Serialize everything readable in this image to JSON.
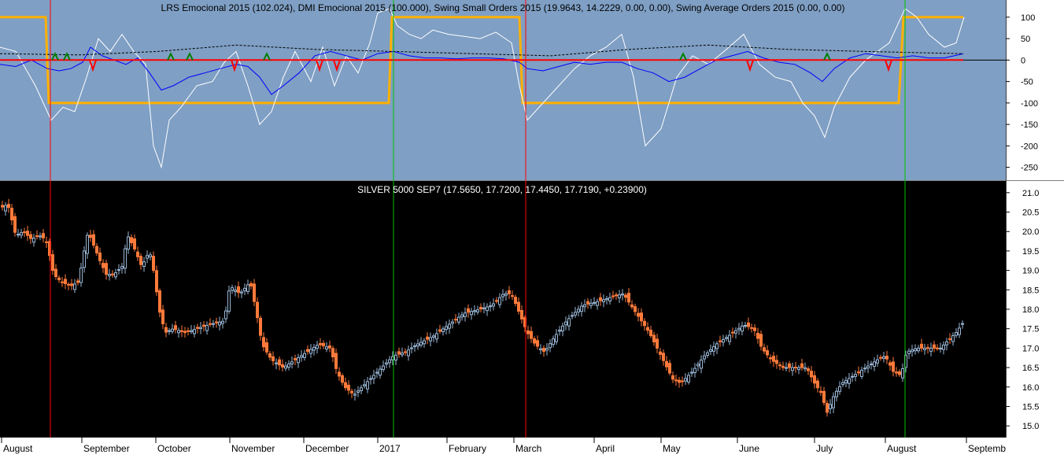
{
  "chart_data": [
    {
      "type": "line",
      "title": "LRS Emocional 2015 (102.024), DMI Emocional 2015 (100.000), Swing Small Orders 2015 (19.9643, 14.2229, 0.00, 0.00), Swing Average Orders 2015 (0.00, 0.00)",
      "ylim": [
        -280,
        140
      ],
      "yticks": [
        "100",
        "50",
        "0",
        "-50",
        "-100",
        "-150",
        "-200",
        "-250"
      ],
      "tick_values": [
        100,
        50,
        0,
        -50,
        -100,
        -150,
        -200,
        -250
      ],
      "background": "#7f9fc4",
      "series": [
        {
          "color": "#ffb000",
          "x": [
            0,
            58,
            60,
            62,
            494,
            496,
            498,
            660,
            662,
            664,
            1142,
            1145,
            1148,
            1224
          ],
          "values": [
            100,
            100,
            0,
            -100,
            -100,
            0,
            100,
            100,
            0,
            -100,
            -100,
            0,
            100,
            100
          ]
        },
        {
          "color": "#ffffff",
          "x": [
            0,
            20,
            45,
            65,
            80,
            95,
            110,
            125,
            140,
            155,
            170,
            185,
            195,
            205,
            215,
            230,
            250,
            270,
            285,
            300,
            315,
            330,
            345,
            360,
            375,
            395,
            410,
            425,
            440,
            455,
            470,
            480,
            495,
            505,
            520,
            535,
            550,
            570,
            590,
            610,
            630,
            650,
            660,
            670,
            690,
            710,
            730,
            750,
            770,
            790,
            805,
            820,
            840,
            860,
            880,
            900,
            920,
            945,
            965,
            985,
            1005,
            1020,
            1035,
            1048,
            1060,
            1080,
            1100,
            1115,
            1130,
            1140,
            1150,
            1165,
            1180,
            1200,
            1215,
            1225
          ],
          "values": [
            30,
            20,
            -60,
            -140,
            -110,
            -120,
            -40,
            50,
            20,
            60,
            20,
            -10,
            -200,
            -250,
            -140,
            -110,
            -60,
            -50,
            -5,
            20,
            -60,
            -150,
            -120,
            -40,
            20,
            -50,
            30,
            -60,
            10,
            -30,
            40,
            110,
            120,
            80,
            60,
            50,
            70,
            60,
            55,
            50,
            65,
            40,
            -60,
            -140,
            -100,
            -60,
            -20,
            10,
            30,
            60,
            -40,
            -200,
            -160,
            -40,
            10,
            -10,
            20,
            60,
            -10,
            -40,
            -50,
            -100,
            -130,
            -180,
            -110,
            -40,
            0,
            20,
            40,
            80,
            120,
            100,
            60,
            30,
            40,
            100
          ]
        },
        {
          "color": "#0000ff",
          "x": [
            0,
            20,
            40,
            60,
            75,
            90,
            105,
            115,
            130,
            145,
            160,
            175,
            190,
            205,
            220,
            240,
            260,
            280,
            300,
            315,
            330,
            345,
            360,
            380,
            400,
            420,
            440,
            460,
            480,
            500,
            520,
            540,
            560,
            580,
            600,
            620,
            640,
            660,
            670,
            690,
            710,
            730,
            750,
            770,
            790,
            810,
            830,
            850,
            870,
            890,
            910,
            930,
            950,
            970,
            990,
            1010,
            1030,
            1045,
            1060,
            1080,
            1100,
            1120,
            1140,
            1160,
            1180,
            1200,
            1224
          ],
          "values": [
            -10,
            -15,
            0,
            -20,
            -25,
            -20,
            -5,
            30,
            10,
            0,
            -10,
            5,
            -30,
            -70,
            -60,
            -40,
            -30,
            -20,
            -10,
            -15,
            -40,
            -80,
            -60,
            -30,
            10,
            20,
            10,
            0,
            15,
            20,
            10,
            5,
            5,
            3,
            5,
            5,
            3,
            -5,
            -20,
            -25,
            -15,
            -5,
            -10,
            -5,
            -5,
            -20,
            -30,
            -50,
            -40,
            -20,
            0,
            10,
            20,
            5,
            -5,
            -10,
            -30,
            -50,
            -20,
            5,
            15,
            10,
            5,
            10,
            5,
            5,
            15
          ]
        },
        {
          "color": "#000000",
          "dashed": true,
          "x": [
            0,
            100,
            200,
            300,
            400,
            500,
            600,
            700,
            800,
            900,
            1000,
            1100,
            1224
          ],
          "values": [
            15,
            12,
            20,
            35,
            25,
            20,
            15,
            10,
            25,
            35,
            25,
            20,
            15
          ]
        },
        {
          "color": "#ff0000",
          "x": [
            0,
            1224
          ],
          "values": [
            0,
            0
          ]
        }
      ],
      "markers": [
        {
          "x": 70,
          "value": 5,
          "color": "#008000",
          "dir": "up"
        },
        {
          "x": 85,
          "value": 5,
          "color": "#008000",
          "dir": "up"
        },
        {
          "x": 118,
          "value": -10,
          "color": "#ff0000",
          "dir": "down"
        },
        {
          "x": 217,
          "value": 5,
          "color": "#008000",
          "dir": "up"
        },
        {
          "x": 241,
          "value": 5,
          "color": "#008000",
          "dir": "up"
        },
        {
          "x": 298,
          "value": -10,
          "color": "#ff0000",
          "dir": "down"
        },
        {
          "x": 339,
          "value": 5,
          "color": "#008000",
          "dir": "up"
        },
        {
          "x": 406,
          "value": -10,
          "color": "#ff0000",
          "dir": "down"
        },
        {
          "x": 428,
          "value": -10,
          "color": "#ff0000",
          "dir": "down"
        },
        {
          "x": 868,
          "value": 5,
          "color": "#008000",
          "dir": "up"
        },
        {
          "x": 953,
          "value": -10,
          "color": "#ff0000",
          "dir": "down"
        },
        {
          "x": 1051,
          "value": 5,
          "color": "#008000",
          "dir": "up"
        },
        {
          "x": 1129,
          "value": -10,
          "color": "#ff0000",
          "dir": "down"
        }
      ]
    },
    {
      "type": "candlestick",
      "title": "SILVER 5000 SEP7 (17.5650, 17.7200, 17.4450, 17.7190, +0.23900)",
      "ylim": [
        14.7,
        21.3
      ],
      "yticks": [
        "21.0",
        "20.5",
        "20.0",
        "19.5",
        "19.0",
        "18.5",
        "18.0",
        "17.5",
        "17.0",
        "16.5",
        "16.0",
        "15.5",
        "15.0"
      ],
      "tick_values": [
        21.0,
        20.5,
        20.0,
        19.5,
        19.0,
        18.5,
        18.0,
        17.5,
        17.0,
        16.5,
        16.0,
        15.5,
        15.0
      ],
      "background": "#000000",
      "up_color": "#9ab7d6",
      "down_color": "#ff7a3a",
      "x_axis_labels": [
        "August",
        "September",
        "October",
        "November",
        "December",
        "2017",
        "February",
        "March",
        "April",
        "May",
        "June",
        "July",
        "August",
        "Septemb"
      ],
      "x_axis_positions": [
        2,
        104,
        198,
        292,
        386,
        480,
        568,
        653,
        755,
        840,
        937,
        1035,
        1125,
        1228
      ],
      "vertical_lines": [
        {
          "x": 64,
          "color": "#ff0000"
        },
        {
          "x": 500,
          "color": "#00c000"
        },
        {
          "x": 668,
          "color": "#ff0000"
        },
        {
          "x": 1150,
          "color": "#00c000"
        }
      ],
      "path": [
        [
          0,
          20.6
        ],
        [
          10,
          20.7
        ],
        [
          15,
          20.3
        ],
        [
          20,
          19.9
        ],
        [
          30,
          20.0
        ],
        [
          40,
          19.8
        ],
        [
          50,
          19.9
        ],
        [
          58,
          19.8
        ],
        [
          64,
          19.3
        ],
        [
          68,
          18.9
        ],
        [
          78,
          18.7
        ],
        [
          90,
          18.6
        ],
        [
          100,
          18.7
        ],
        [
          105,
          19.3
        ],
        [
          112,
          20.0
        ],
        [
          120,
          19.6
        ],
        [
          128,
          19.2
        ],
        [
          135,
          18.9
        ],
        [
          145,
          18.9
        ],
        [
          155,
          19.1
        ],
        [
          162,
          19.9
        ],
        [
          170,
          19.6
        ],
        [
          180,
          19.1
        ],
        [
          190,
          19.5
        ],
        [
          196,
          18.9
        ],
        [
          202,
          18.0
        ],
        [
          210,
          17.4
        ],
        [
          220,
          17.5
        ],
        [
          235,
          17.4
        ],
        [
          250,
          17.5
        ],
        [
          265,
          17.6
        ],
        [
          285,
          17.7
        ],
        [
          292,
          18.6
        ],
        [
          305,
          18.4
        ],
        [
          318,
          18.7
        ],
        [
          326,
          17.9
        ],
        [
          333,
          17.1
        ],
        [
          345,
          16.7
        ],
        [
          360,
          16.5
        ],
        [
          375,
          16.7
        ],
        [
          390,
          16.9
        ],
        [
          405,
          17.1
        ],
        [
          420,
          17.0
        ],
        [
          428,
          16.4
        ],
        [
          438,
          16.0
        ],
        [
          450,
          15.8
        ],
        [
          465,
          16.1
        ],
        [
          480,
          16.4
        ],
        [
          500,
          16.8
        ],
        [
          515,
          16.9
        ],
        [
          530,
          17.1
        ],
        [
          550,
          17.3
        ],
        [
          570,
          17.6
        ],
        [
          590,
          17.9
        ],
        [
          610,
          18.0
        ],
        [
          625,
          18.1
        ],
        [
          640,
          18.4
        ],
        [
          650,
          18.4
        ],
        [
          660,
          17.9
        ],
        [
          670,
          17.4
        ],
        [
          680,
          17.1
        ],
        [
          692,
          16.9
        ],
        [
          705,
          17.3
        ],
        [
          720,
          17.7
        ],
        [
          740,
          18.1
        ],
        [
          760,
          18.2
        ],
        [
          775,
          18.3
        ],
        [
          792,
          18.4
        ],
        [
          805,
          18.0
        ],
        [
          815,
          17.7
        ],
        [
          825,
          17.4
        ],
        [
          840,
          16.8
        ],
        [
          855,
          16.2
        ],
        [
          865,
          16.1
        ],
        [
          880,
          16.4
        ],
        [
          895,
          16.8
        ],
        [
          910,
          17.1
        ],
        [
          925,
          17.3
        ],
        [
          945,
          17.6
        ],
        [
          958,
          17.5
        ],
        [
          968,
          17.0
        ],
        [
          980,
          16.7
        ],
        [
          995,
          16.5
        ],
        [
          1010,
          16.5
        ],
        [
          1025,
          16.5
        ],
        [
          1035,
          16.1
        ],
        [
          1045,
          15.8
        ],
        [
          1050,
          15.3
        ],
        [
          1060,
          15.8
        ],
        [
          1070,
          16.1
        ],
        [
          1085,
          16.3
        ],
        [
          1100,
          16.5
        ],
        [
          1115,
          16.7
        ],
        [
          1125,
          16.8
        ],
        [
          1135,
          16.4
        ],
        [
          1145,
          16.3
        ],
        [
          1152,
          16.9
        ],
        [
          1165,
          17.0
        ],
        [
          1180,
          17.0
        ],
        [
          1195,
          17.0
        ],
        [
          1205,
          17.2
        ],
        [
          1215,
          17.4
        ],
        [
          1226,
          17.72
        ]
      ]
    }
  ]
}
